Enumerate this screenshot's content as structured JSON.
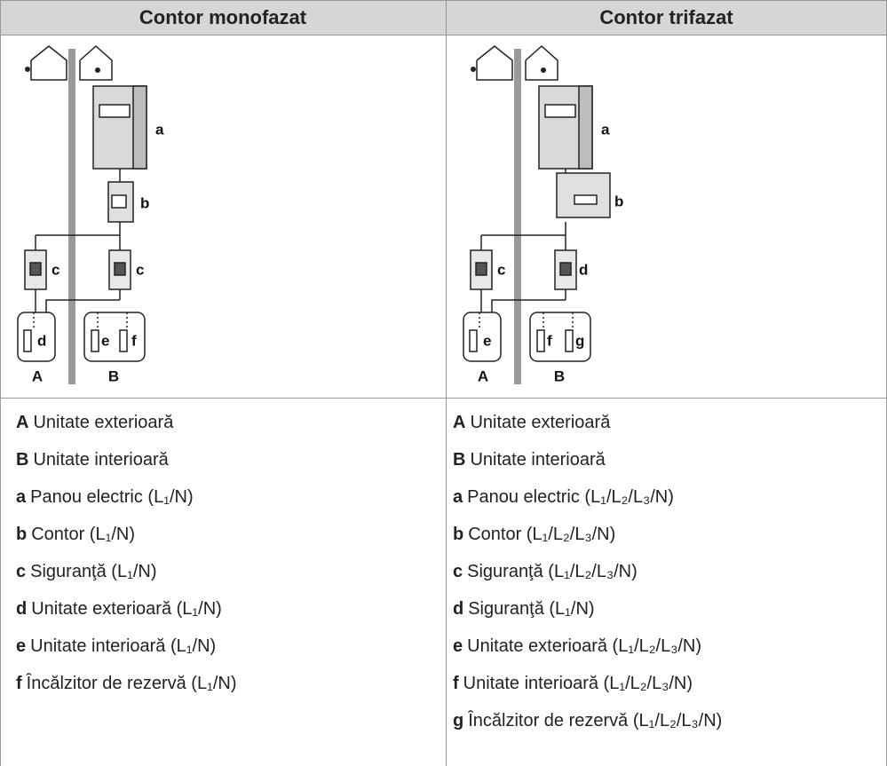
{
  "table": {
    "headers": [
      "Contor monofazat",
      "Contor trifazat"
    ],
    "columns": [
      {
        "diagram": {
          "labels": [
            "a",
            "b",
            "c",
            "c",
            "d",
            "e",
            "f"
          ],
          "units": [
            "A",
            "B"
          ]
        },
        "legend": [
          {
            "key": "A",
            "text": "Unitate exterioară"
          },
          {
            "key": "B",
            "text": "Unitate interioară"
          },
          {
            "key": "a",
            "text": "Panou electric (L₁/N)"
          },
          {
            "key": "b",
            "text": "Contor (L₁/N)"
          },
          {
            "key": "c",
            "text": "Siguranţă (L₁/N)"
          },
          {
            "key": "d",
            "text": "Unitate exterioară (L₁/N)"
          },
          {
            "key": "e",
            "text": "Unitate interioară (L₁/N)"
          },
          {
            "key": "f",
            "text": "Încălzitor de rezervă (L₁/N)"
          }
        ]
      },
      {
        "diagram": {
          "labels": [
            "a",
            "b",
            "c",
            "d",
            "e",
            "f",
            "g"
          ],
          "units": [
            "A",
            "B"
          ]
        },
        "legend": [
          {
            "key": "A",
            "text": "Unitate exterioară"
          },
          {
            "key": "B",
            "text": "Unitate interioară"
          },
          {
            "key": "a",
            "text": "Panou electric (L₁/L₂/L₃/N)"
          },
          {
            "key": "b",
            "text": "Contor (L₁/L₂/L₃/N)"
          },
          {
            "key": "c",
            "text": "Siguranţă (L₁/L₂/L₃/N)"
          },
          {
            "key": "d",
            "text": "Siguranţă (L₁/N)"
          },
          {
            "key": "e",
            "text": "Unitate exterioară (L₁/L₂/L₃/N)"
          },
          {
            "key": "f",
            "text": "Unitate interioară (L₁/L₂/L₃/N)"
          },
          {
            "key": "g",
            "text": "Încălzitor de rezervă (L₁/L₂/L₃/N)"
          }
        ]
      }
    ]
  }
}
